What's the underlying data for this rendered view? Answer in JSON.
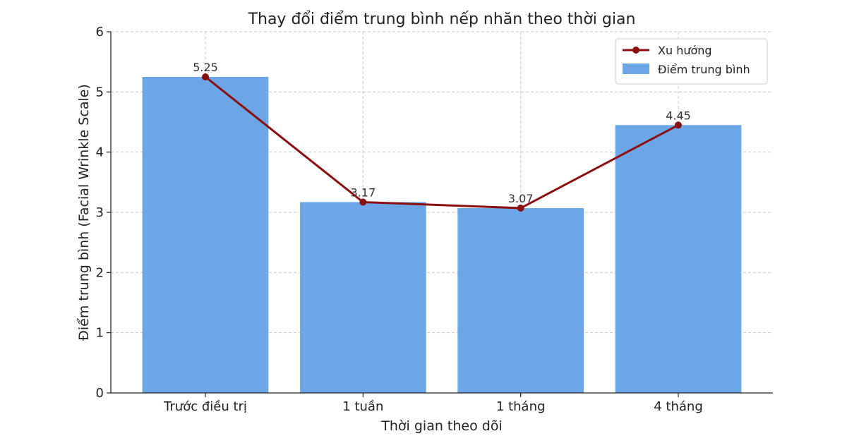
{
  "chart_data": {
    "type": "bar",
    "title": "Thay đổi điểm trung bình nếp nhăn theo thời gian",
    "xlabel": "Thời gian theo dõi",
    "ylabel": "Điểm trung bình (Facial Wrinkle Scale)",
    "categories": [
      "Trước điều trị",
      "1 tuần",
      "1 tháng",
      "4 tháng"
    ],
    "ylim": [
      0,
      6
    ],
    "yticks": [
      0,
      1,
      2,
      3,
      4,
      5,
      6
    ],
    "grid": true,
    "legend_position": "top-right",
    "series": [
      {
        "name": "Điểm trung bình",
        "type": "bar",
        "color": "#6ca6e6",
        "values": [
          5.25,
          3.17,
          3.07,
          4.45
        ]
      },
      {
        "name": "Xu hướng",
        "type": "line",
        "color": "#8b0f0f",
        "values": [
          5.25,
          3.17,
          3.07,
          4.45
        ]
      }
    ],
    "data_labels": [
      "5.25",
      "3.17",
      "3.07",
      "4.45"
    ]
  }
}
